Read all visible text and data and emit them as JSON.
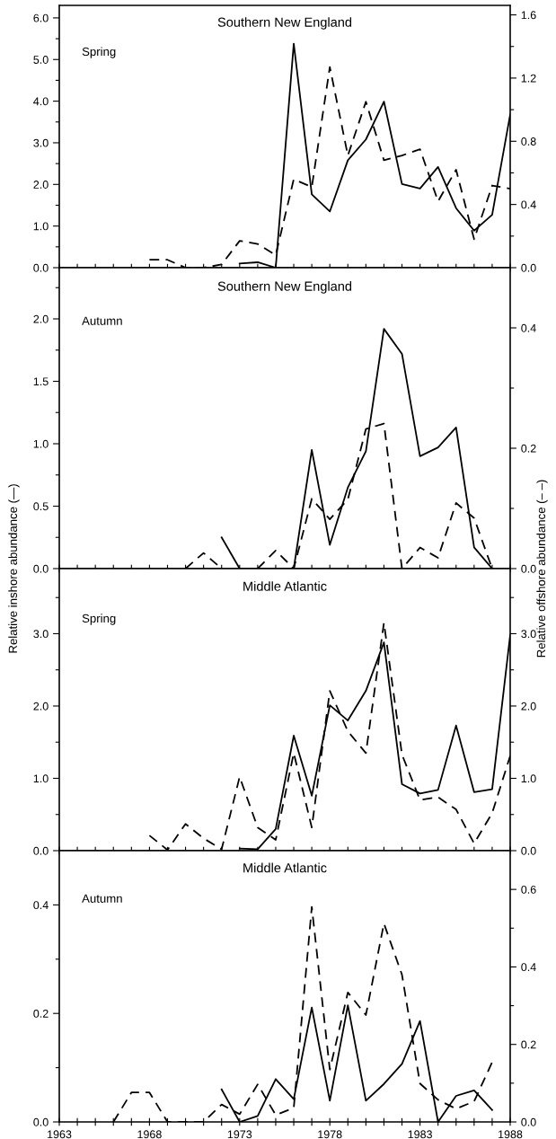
{
  "chart_data": [
    {
      "type": "line",
      "title": "Southern New England",
      "subtitle": "Spring",
      "tick_labels": "y",
      "x": [
        1968,
        1969,
        1970,
        1971,
        1972,
        1973,
        1974,
        1975,
        1976,
        1977,
        1978,
        1979,
        1980,
        1981,
        1982,
        1983,
        1984,
        1985,
        1986,
        1987,
        1988
      ],
      "xlim": [
        1963,
        1988
      ],
      "xticks": [
        {
          "value": 1963,
          "label": null
        },
        {
          "value": 1964,
          "label": null
        },
        {
          "value": 1965,
          "label": null
        },
        {
          "value": 1966,
          "label": null
        },
        {
          "value": 1967,
          "label": null
        },
        {
          "value": 1968,
          "label": null
        },
        {
          "value": 1969,
          "label": null
        },
        {
          "value": 1970,
          "label": null
        },
        {
          "value": 1971,
          "label": null
        },
        {
          "value": 1972,
          "label": null
        },
        {
          "value": 1973,
          "label": null
        },
        {
          "value": 1974,
          "label": null
        },
        {
          "value": 1975,
          "label": null
        },
        {
          "value": 1976,
          "label": null
        },
        {
          "value": 1977,
          "label": null
        },
        {
          "value": 1978,
          "label": null
        },
        {
          "value": 1979,
          "label": null
        },
        {
          "value": 1980,
          "label": null
        },
        {
          "value": 1981,
          "label": null
        },
        {
          "value": 1982,
          "label": null
        },
        {
          "value": 1983,
          "label": null
        },
        {
          "value": 1984,
          "label": null
        },
        {
          "value": 1985,
          "label": null
        },
        {
          "value": 1986,
          "label": null
        },
        {
          "value": 1987,
          "label": null
        },
        {
          "value": 1988,
          "label": null
        }
      ],
      "ylim": [
        0,
        6.3
      ],
      "yticks": [
        {
          "value": 0,
          "label": "0.0"
        },
        {
          "value": 0.5,
          "label": null
        },
        {
          "value": 1,
          "label": "1.0"
        },
        {
          "value": 1.5,
          "label": null
        },
        {
          "value": 2,
          "label": "2.0"
        },
        {
          "value": 2.5,
          "label": null
        },
        {
          "value": 3,
          "label": "3.0"
        },
        {
          "value": 3.5,
          "label": null
        },
        {
          "value": 4,
          "label": "4.0"
        },
        {
          "value": 4.5,
          "label": null
        },
        {
          "value": 5,
          "label": "5.0"
        },
        {
          "value": 5.5,
          "label": null
        },
        {
          "value": 6,
          "label": "6.0"
        }
      ],
      "y2lim": [
        0,
        1.66
      ],
      "y2ticks": [
        {
          "value": 0,
          "label": "0.0"
        },
        {
          "value": 0.2,
          "label": null
        },
        {
          "value": 0.4,
          "label": "0.4"
        },
        {
          "value": 0.6,
          "label": null
        },
        {
          "value": 0.8,
          "label": "0.8"
        },
        {
          "value": 1.0,
          "label": null
        },
        {
          "value": 1.2,
          "label": "1.2"
        },
        {
          "value": 1.4,
          "label": null
        },
        {
          "value": 1.6,
          "label": "1.6"
        }
      ],
      "series": [
        {
          "color": "#000000",
          "line_style": "solid",
          "values": [
            null,
            null,
            null,
            null,
            null,
            0.1,
            0.13,
            0.0,
            5.38,
            1.76,
            1.35,
            2.58,
            3.08,
            3.99,
            2.01,
            1.9,
            2.42,
            1.43,
            0.89,
            1.27,
            3.68
          ]
        },
        {
          "color": "#000000",
          "line_style": "dashed",
          "axis": "y2",
          "values": [
            0.05,
            0.05,
            0.0,
            0.0,
            0.02,
            0.17,
            0.15,
            0.08,
            0.56,
            0.51,
            1.27,
            0.71,
            1.05,
            0.68,
            0.71,
            0.75,
            0.42,
            0.62,
            0.18,
            0.52,
            0.5
          ]
        }
      ]
    },
    {
      "type": "line",
      "title": "Southern New England",
      "subtitle": "Autumn",
      "tick_labels": "y",
      "ylabel": "Relative inshore abundance (—)",
      "y2label": "Relative offshore abundance (– –)",
      "x": [
        1970,
        1971,
        1972,
        1973,
        1974,
        1975,
        1976,
        1977,
        1978,
        1979,
        1980,
        1981,
        1982,
        1983,
        1984,
        1985,
        1986,
        1987
      ],
      "xlim": [
        1963,
        1988
      ],
      "xticks": [
        {
          "value": 1963,
          "label": null
        },
        {
          "value": 1964,
          "label": null
        },
        {
          "value": 1965,
          "label": null
        },
        {
          "value": 1966,
          "label": null
        },
        {
          "value": 1967,
          "label": null
        },
        {
          "value": 1968,
          "label": null
        },
        {
          "value": 1969,
          "label": null
        },
        {
          "value": 1970,
          "label": null
        },
        {
          "value": 1971,
          "label": null
        },
        {
          "value": 1972,
          "label": null
        },
        {
          "value": 1973,
          "label": null
        },
        {
          "value": 1974,
          "label": null
        },
        {
          "value": 1975,
          "label": null
        },
        {
          "value": 1976,
          "label": null
        },
        {
          "value": 1977,
          "label": null
        },
        {
          "value": 1978,
          "label": null
        },
        {
          "value": 1979,
          "label": null
        },
        {
          "value": 1980,
          "label": null
        },
        {
          "value": 1981,
          "label": null
        },
        {
          "value": 1982,
          "label": null
        },
        {
          "value": 1983,
          "label": null
        },
        {
          "value": 1984,
          "label": null
        },
        {
          "value": 1985,
          "label": null
        },
        {
          "value": 1986,
          "label": null
        },
        {
          "value": 1987,
          "label": null
        },
        {
          "value": 1988,
          "label": null
        }
      ],
      "ylim": [
        0,
        2.41
      ],
      "yticks": [
        {
          "value": 0,
          "label": "0.0"
        },
        {
          "value": 0.25,
          "label": null
        },
        {
          "value": 0.5,
          "label": "0.5"
        },
        {
          "value": 0.75,
          "label": null
        },
        {
          "value": 1,
          "label": "1.0"
        },
        {
          "value": 1.25,
          "label": null
        },
        {
          "value": 1.5,
          "label": "1.5"
        },
        {
          "value": 1.75,
          "label": null
        },
        {
          "value": 2,
          "label": "2.0"
        },
        {
          "value": 2.25,
          "label": null
        }
      ],
      "y2lim": [
        0,
        0.5
      ],
      "y2ticks": [
        {
          "value": 0,
          "label": "0.0"
        },
        {
          "value": 0.1,
          "label": null
        },
        {
          "value": 0.2,
          "label": "0.2"
        },
        {
          "value": 0.3,
          "label": null
        },
        {
          "value": 0.4,
          "label": "0.4"
        }
      ],
      "series": [
        {
          "color": "#000000",
          "line_style": "solid",
          "values": [
            null,
            null,
            0.25,
            0.0,
            0.0,
            0.0,
            0.0,
            0.95,
            0.19,
            0.65,
            0.94,
            1.92,
            1.72,
            0.9,
            0.97,
            1.13,
            0.17,
            0.0
          ]
        },
        {
          "color": "#000000",
          "line_style": "dashed",
          "axis": "y2",
          "values": [
            0.0,
            0.026,
            0.0,
            null,
            0.0,
            0.03,
            0.0,
            0.116,
            0.082,
            0.115,
            0.232,
            0.241,
            0.0,
            0.035,
            0.018,
            0.109,
            0.084,
            0.0
          ]
        }
      ]
    },
    {
      "type": "line",
      "title": "Middle Atlantic",
      "subtitle": "Spring",
      "tick_labels": "y",
      "x": [
        1968,
        1969,
        1970,
        1971,
        1972,
        1973,
        1974,
        1975,
        1976,
        1977,
        1978,
        1979,
        1980,
        1981,
        1982,
        1983,
        1984,
        1985,
        1986,
        1987,
        1988
      ],
      "xlim": [
        1963,
        1988
      ],
      "xticks": [
        {
          "value": 1963,
          "label": null
        },
        {
          "value": 1964,
          "label": null
        },
        {
          "value": 1965,
          "label": null
        },
        {
          "value": 1966,
          "label": null
        },
        {
          "value": 1967,
          "label": null
        },
        {
          "value": 1968,
          "label": null
        },
        {
          "value": 1969,
          "label": null
        },
        {
          "value": 1970,
          "label": null
        },
        {
          "value": 1971,
          "label": null
        },
        {
          "value": 1972,
          "label": null
        },
        {
          "value": 1973,
          "label": null
        },
        {
          "value": 1974,
          "label": null
        },
        {
          "value": 1975,
          "label": null
        },
        {
          "value": 1976,
          "label": null
        },
        {
          "value": 1977,
          "label": null
        },
        {
          "value": 1978,
          "label": null
        },
        {
          "value": 1979,
          "label": null
        },
        {
          "value": 1980,
          "label": null
        },
        {
          "value": 1981,
          "label": null
        },
        {
          "value": 1982,
          "label": null
        },
        {
          "value": 1983,
          "label": null
        },
        {
          "value": 1984,
          "label": null
        },
        {
          "value": 1985,
          "label": null
        },
        {
          "value": 1986,
          "label": null
        },
        {
          "value": 1987,
          "label": null
        },
        {
          "value": 1988,
          "label": null
        }
      ],
      "ylim": [
        0,
        3.9
      ],
      "yticks": [
        {
          "value": 0,
          "label": "0.0"
        },
        {
          "value": 0.5,
          "label": null
        },
        {
          "value": 1,
          "label": "1.0"
        },
        {
          "value": 1.5,
          "label": null
        },
        {
          "value": 2,
          "label": "2.0"
        },
        {
          "value": 2.5,
          "label": null
        },
        {
          "value": 3,
          "label": "3.0"
        },
        {
          "value": 3.5,
          "label": null
        }
      ],
      "y2lim": [
        0,
        3.9
      ],
      "y2ticks": [
        {
          "value": 0,
          "label": "0.0"
        },
        {
          "value": 0.5,
          "label": null
        },
        {
          "value": 1,
          "label": "1.0"
        },
        {
          "value": 1.5,
          "label": null
        },
        {
          "value": 2,
          "label": "2.0"
        },
        {
          "value": 2.5,
          "label": null
        },
        {
          "value": 3,
          "label": "3.0"
        },
        {
          "value": 3.5,
          "label": null
        }
      ],
      "series": [
        {
          "color": "#000000",
          "line_style": "solid",
          "values": [
            null,
            null,
            null,
            null,
            null,
            0.03,
            0.02,
            0.3,
            1.59,
            0.76,
            2.01,
            1.8,
            2.21,
            2.88,
            0.92,
            0.79,
            0.84,
            1.73,
            0.81,
            0.85,
            2.98
          ]
        },
        {
          "color": "#000000",
          "line_style": "dashed",
          "axis": "y2",
          "values": [
            0.21,
            0.01,
            0.37,
            0.17,
            0.02,
            1.02,
            0.32,
            0.15,
            1.35,
            0.32,
            2.21,
            1.65,
            1.35,
            3.15,
            1.33,
            0.7,
            0.74,
            0.57,
            0.1,
            0.52,
            1.31
          ]
        }
      ]
    },
    {
      "type": "line",
      "title": "Middle Atlantic",
      "subtitle": "Autumn",
      "x": [
        1966,
        1967,
        1968,
        1969,
        1970,
        1971,
        1972,
        1973,
        1974,
        1975,
        1976,
        1977,
        1978,
        1979,
        1980,
        1981,
        1982,
        1983,
        1984,
        1985,
        1986,
        1987
      ],
      "xlim": [
        1963,
        1988
      ],
      "xticks": [
        1963,
        {
          "value": 1964,
          "label": null
        },
        {
          "value": 1965,
          "label": null
        },
        {
          "value": 1966,
          "label": null
        },
        {
          "value": 1967,
          "label": null
        },
        1968,
        {
          "value": 1969,
          "label": null
        },
        {
          "value": 1970,
          "label": null
        },
        {
          "value": 1971,
          "label": null
        },
        {
          "value": 1972,
          "label": null
        },
        1973,
        {
          "value": 1974,
          "label": null
        },
        {
          "value": 1975,
          "label": null
        },
        {
          "value": 1976,
          "label": null
        },
        {
          "value": 1977,
          "label": null
        },
        1978,
        {
          "value": 1979,
          "label": null
        },
        {
          "value": 1980,
          "label": null
        },
        {
          "value": 1981,
          "label": null
        },
        {
          "value": 1982,
          "label": null
        },
        1983,
        {
          "value": 1984,
          "label": null
        },
        {
          "value": 1985,
          "label": null
        },
        {
          "value": 1986,
          "label": null
        },
        {
          "value": 1987,
          "label": null
        },
        1988
      ],
      "ylim": [
        0,
        0.5
      ],
      "yticks": [
        {
          "value": 0,
          "label": "0.0"
        },
        {
          "value": 0.1,
          "label": null
        },
        {
          "value": 0.2,
          "label": "0.2"
        },
        {
          "value": 0.3,
          "label": null
        },
        {
          "value": 0.4,
          "label": "0.4"
        }
      ],
      "y2lim": [
        0,
        0.7
      ],
      "y2ticks": [
        {
          "value": 0,
          "label": "0.0"
        },
        {
          "value": 0.1,
          "label": null
        },
        {
          "value": 0.2,
          "label": "0.2"
        },
        {
          "value": 0.3,
          "label": null
        },
        {
          "value": 0.4,
          "label": "0.4"
        },
        {
          "value": 0.5,
          "label": null
        },
        {
          "value": 0.6,
          "label": "0.6"
        }
      ],
      "series": [
        {
          "color": "#000000",
          "line_style": "solid",
          "values": [
            null,
            null,
            null,
            null,
            null,
            null,
            0.06,
            0.0,
            0.011,
            0.079,
            0.042,
            0.211,
            0.039,
            0.215,
            0.039,
            0.07,
            0.107,
            0.186,
            0.0,
            0.048,
            0.058,
            0.022
          ]
        },
        {
          "color": "#000000",
          "line_style": "dashed",
          "axis": "y2",
          "values": [
            0.0,
            0.076,
            0.076,
            0.0,
            0.0,
            0.0,
            0.045,
            0.02,
            0.097,
            0.018,
            0.036,
            0.555,
            0.135,
            0.334,
            0.276,
            0.512,
            0.38,
            0.099,
            0.057,
            0.034,
            0.053,
            0.154
          ]
        }
      ]
    }
  ]
}
